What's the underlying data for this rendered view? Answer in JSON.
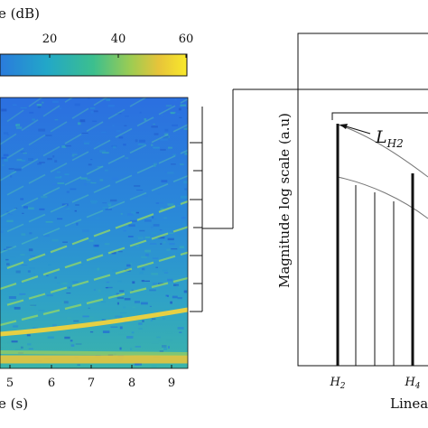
{
  "colorbar": {
    "title_fragment": "e (dB)",
    "ticks": [
      "20",
      "40",
      "60"
    ],
    "colors": [
      "#2a7bdc",
      "#22a7c8",
      "#3cbf8e",
      "#9dcc52",
      "#e7c43a",
      "#f9e92a"
    ]
  },
  "spectrogram": {
    "xticks": [
      "5",
      "6",
      "7",
      "8",
      "9"
    ],
    "xlabel_fragment": "e (s)",
    "background": "#2c86d8",
    "harmonic_color": "#7fd36c",
    "fundamental_color": "#f0d23c"
  },
  "harmonic_plot": {
    "ylabel": "Magnitude log scale (a.u)",
    "xlabel_fragment": "Linea",
    "xticks": [
      "H2",
      "H4"
    ],
    "annotation": "L",
    "annotation_sub": "H2"
  }
}
